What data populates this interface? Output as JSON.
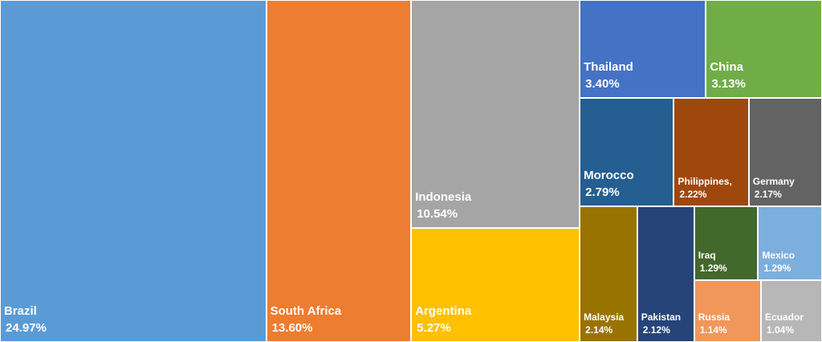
{
  "chart_data": {
    "type": "treemap",
    "categories": [
      "Brazil",
      "South Africa",
      "Indonesia",
      "Argentina",
      "Thailand",
      "China",
      "Morocco",
      "Philippines,",
      "Germany",
      "Malaysia",
      "Pakistan",
      "Iraq",
      "Mexico",
      "Russia",
      "Ecuador"
    ],
    "values": [
      24.97,
      13.6,
      10.54,
      5.27,
      3.4,
      3.13,
      2.79,
      2.22,
      2.17,
      2.14,
      2.12,
      1.29,
      1.29,
      1.14,
      1.04
    ],
    "value_labels": [
      "24.97%",
      "13.60%",
      "10.54%",
      "5.27%",
      "3.40%",
      "3.13%",
      "2.79%",
      "2.22%",
      "2.17%",
      "2.14%",
      "2.12%",
      "1.29%",
      "1.29%",
      "1.14%",
      "1.04%"
    ],
    "colors": [
      "#5b9bd5",
      "#ed7d31",
      "#a5a5a5",
      "#ffc000",
      "#4472c4",
      "#70ad47",
      "#255e91",
      "#9e480e",
      "#636363",
      "#997300",
      "#264478",
      "#43682b",
      "#7cafdd",
      "#f1975a",
      "#b7b7b7"
    ]
  }
}
